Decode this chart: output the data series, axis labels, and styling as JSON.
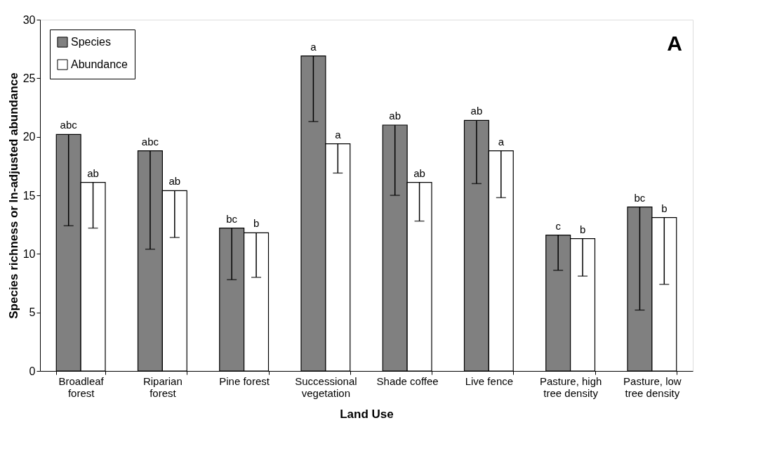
{
  "chart_data": {
    "type": "bar",
    "xlabel": "Land Use",
    "ylabel": "Species richness or ln-adjusted abundance",
    "categories": [
      "Broadleaf forest",
      "Riparian forest",
      "Pine forest",
      "Successional vegetation",
      "Shade coffee",
      "Live fence",
      "Pasture, high tree density",
      "Pasture, low tree density"
    ],
    "series": [
      {
        "name": "Species",
        "color": "#808080",
        "values": [
          20.2,
          18.8,
          12.2,
          26.9,
          21.0,
          21.4,
          11.6,
          14.0
        ],
        "errors": [
          [
            12.4,
            20.2
          ],
          [
            10.4,
            18.8
          ],
          [
            7.8,
            12.2
          ],
          [
            21.3,
            26.9
          ],
          [
            15.0,
            21.0
          ],
          [
            16.0,
            21.4
          ],
          [
            8.6,
            11.6
          ],
          [
            5.2,
            14.0
          ]
        ],
        "value_labels": [
          "abc",
          "abc",
          "bc",
          "a",
          "ab",
          "ab",
          "c",
          "bc"
        ]
      },
      {
        "name": "Abundance",
        "color": "#ffffff",
        "values": [
          16.1,
          15.4,
          11.8,
          19.4,
          16.1,
          18.8,
          11.3,
          13.1
        ],
        "errors": [
          [
            12.2,
            16.1
          ],
          [
            11.4,
            15.4
          ],
          [
            8.0,
            11.8
          ],
          [
            16.9,
            19.4
          ],
          [
            12.8,
            16.1
          ],
          [
            14.8,
            18.8
          ],
          [
            8.1,
            11.3
          ],
          [
            7.4,
            13.1
          ]
        ],
        "value_labels": [
          "ab",
          "ab",
          "b",
          "a",
          "ab",
          "a",
          "b",
          "b"
        ]
      }
    ],
    "ylim": [
      0,
      30
    ],
    "yticks": [
      0,
      5,
      10,
      15,
      20,
      25,
      30
    ],
    "grid": false,
    "legend": "top left",
    "annotations": [
      "A"
    ]
  }
}
